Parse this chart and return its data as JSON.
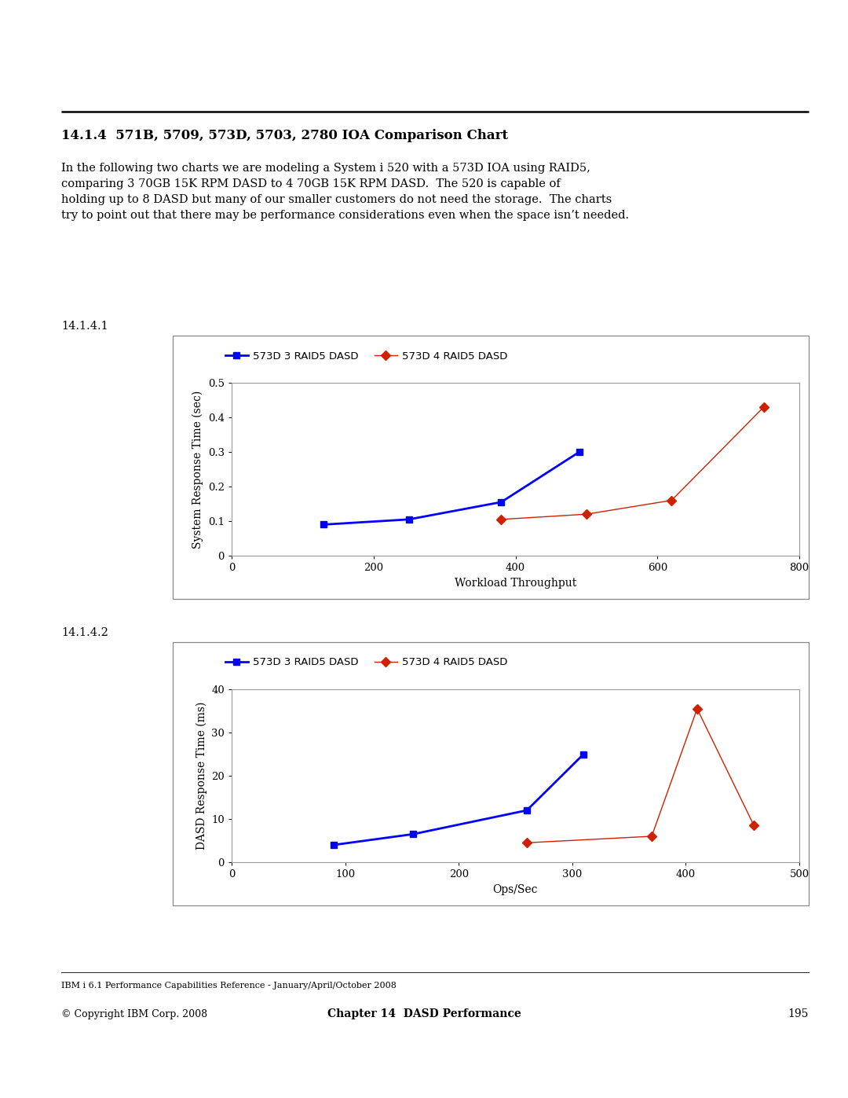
{
  "title": "14.1.4  571B, 5709, 573D, 5703, 2780 IOA Comparison Chart",
  "body_text": "In the following two charts we are modeling a System i 520 with a 573D IOA using RAID5,\ncomparing 3 70GB 15K RPM DASD to 4 70GB 15K RPM DASD.  The 520 is capable of\nholding up to 8 DASD but many of our smaller customers do not need the storage.  The charts\ntry to point out that there may be performance considerations even when the space isn’t needed.",
  "chart1": {
    "label": "14.1.4.1",
    "series1_label": "573D 3 RAID5 DASD",
    "series2_label": "573D 4 RAID5 DASD",
    "series1_x": [
      130,
      250,
      380,
      490
    ],
    "series1_y": [
      0.09,
      0.105,
      0.155,
      0.3
    ],
    "series2_x": [
      380,
      500,
      620,
      750
    ],
    "series2_y": [
      0.105,
      0.12,
      0.16,
      0.43
    ],
    "xlabel": "Workload Throughput",
    "ylabel": "System Response Time (sec)",
    "xlim": [
      0,
      800
    ],
    "ylim": [
      0,
      0.5
    ],
    "xticks": [
      0,
      200,
      400,
      600,
      800
    ],
    "yticks": [
      0,
      0.1,
      0.2,
      0.3,
      0.4,
      0.5
    ],
    "ytick_labels": [
      "0",
      "0.1",
      "0.2",
      "0.3",
      "0.4",
      "0.5"
    ]
  },
  "chart2": {
    "label": "14.1.4.2",
    "series1_label": "573D 3 RAID5 DASD",
    "series2_label": "573D 4 RAID5 DASD",
    "series1_x": [
      90,
      160,
      260,
      310
    ],
    "series1_y": [
      4.0,
      6.5,
      12.0,
      25.0
    ],
    "series2_x": [
      260,
      370,
      410,
      460
    ],
    "series2_y": [
      4.5,
      6.0,
      35.5,
      8.5
    ],
    "xlabel": "Ops/Sec",
    "ylabel": "DASD Response Time (ms)",
    "xlim": [
      0,
      500
    ],
    "ylim": [
      0,
      40
    ],
    "xticks": [
      0,
      100,
      200,
      300,
      400,
      500
    ],
    "yticks": [
      0,
      10,
      20,
      30,
      40
    ],
    "ytick_labels": [
      "0",
      "10",
      "20",
      "30",
      "40"
    ]
  },
  "series1_color": "#0000FF",
  "series2_color": "#CC2200",
  "footer_line1": "IBM i 6.1 Performance Capabilities Reference - January/April/October 2008",
  "footer_line2_left": "© Copyright IBM Corp. 2008",
  "footer_line2_center": "Chapter 14  DASD Performance",
  "footer_line2_right": "195",
  "bg_color": "#FFFFFF"
}
